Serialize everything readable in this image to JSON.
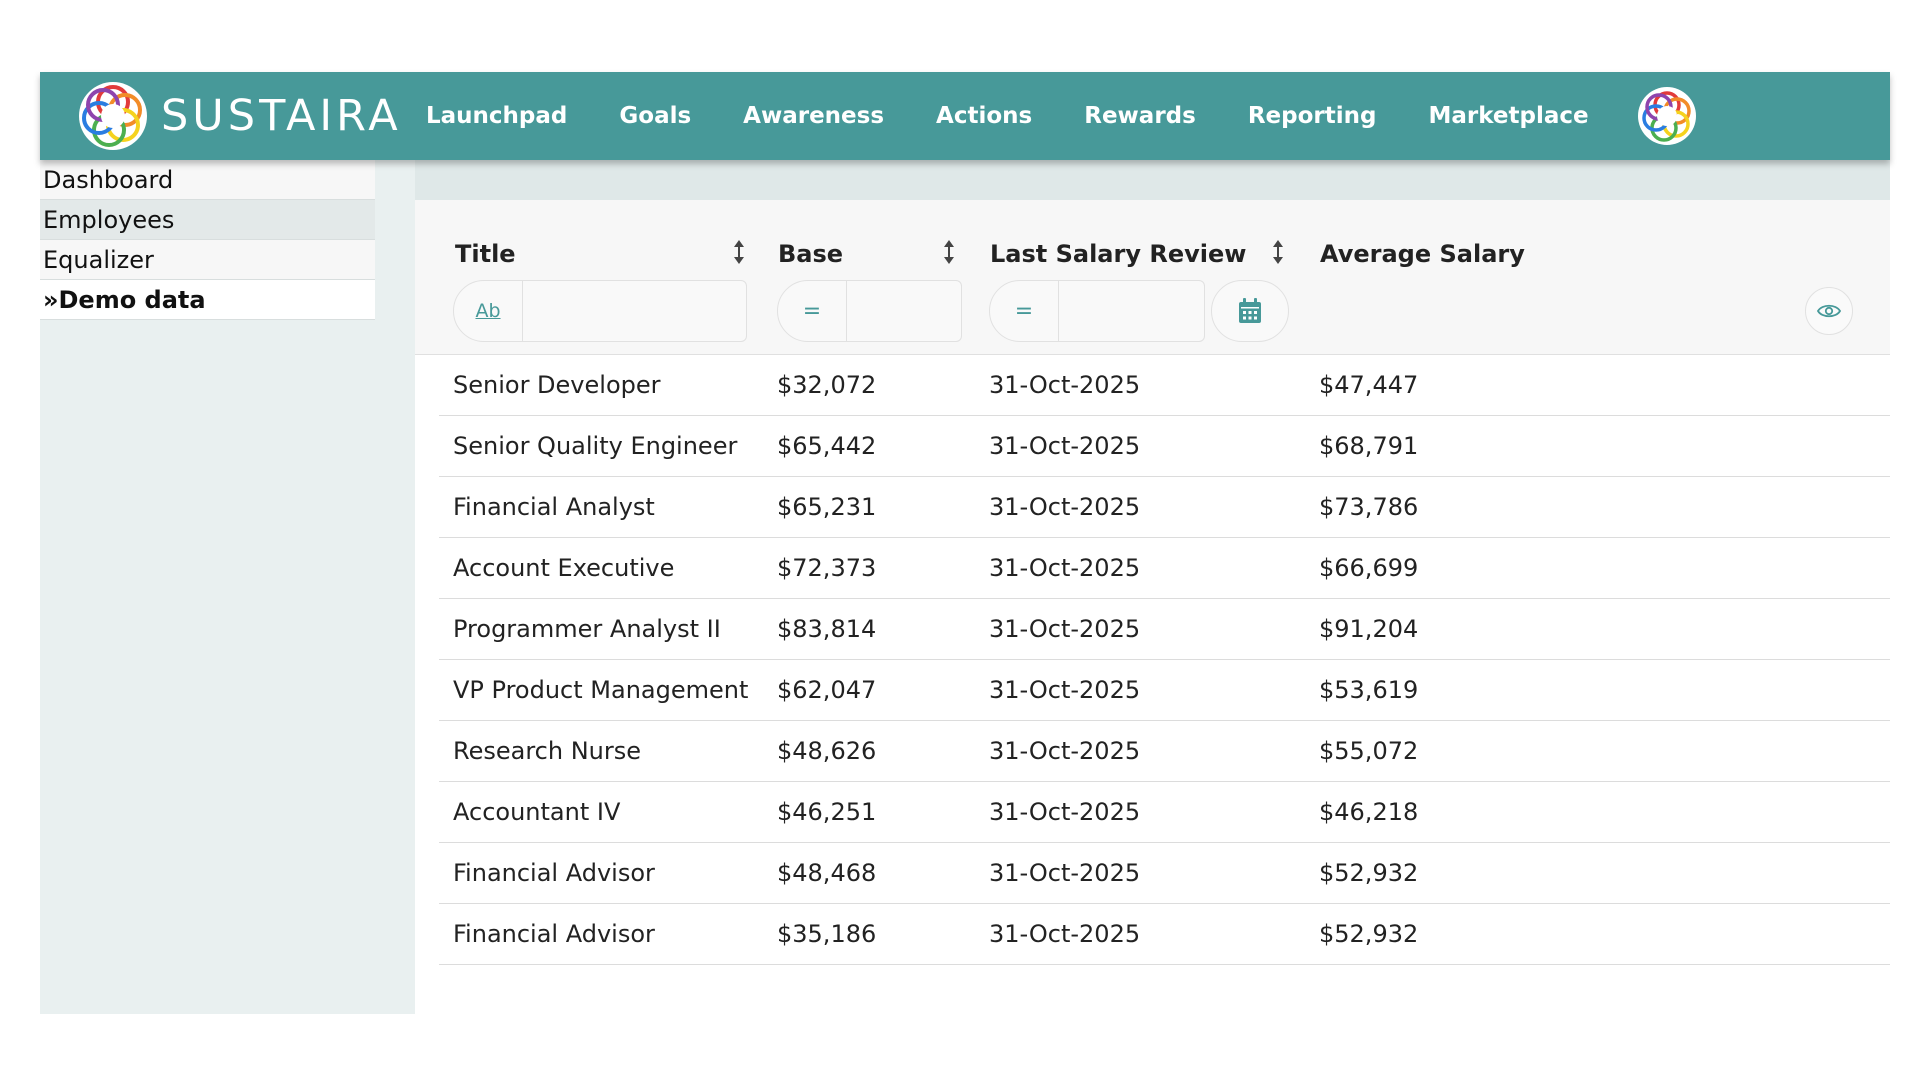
{
  "brand": {
    "name": "SUSTAIRA"
  },
  "nav": {
    "items": [
      "Launchpad",
      "Goals",
      "Awareness",
      "Actions",
      "Rewards",
      "Reporting",
      "Marketplace"
    ]
  },
  "sidebar": {
    "items": [
      "Dashboard",
      "Employees",
      "Equalizer",
      "»Demo data"
    ]
  },
  "table": {
    "columns": {
      "title": "Title",
      "base": "Base",
      "last_review": "Last Salary Review",
      "average": "Average Salary"
    },
    "filters": {
      "text_op": "Ab",
      "eq_op": "="
    },
    "rows": [
      [
        "Senior Developer",
        "$32,072",
        "31-Oct-2025",
        "$47,447"
      ],
      [
        "Senior Quality Engineer",
        "$65,442",
        "31-Oct-2025",
        "$68,791"
      ],
      [
        "Financial Analyst",
        "$65,231",
        "31-Oct-2025",
        "$73,786"
      ],
      [
        "Account Executive",
        "$72,373",
        "31-Oct-2025",
        "$66,699"
      ],
      [
        "Programmer Analyst II",
        "$83,814",
        "31-Oct-2025",
        "$91,204"
      ],
      [
        "VP Product Management",
        "$62,047",
        "31-Oct-2025",
        "$53,619"
      ],
      [
        "Research Nurse",
        "$48,626",
        "31-Oct-2025",
        "$55,072"
      ],
      [
        "Accountant IV",
        "$46,251",
        "31-Oct-2025",
        "$46,218"
      ],
      [
        "Financial Advisor",
        "$48,468",
        "31-Oct-2025",
        "$52,932"
      ],
      [
        "Financial Advisor",
        "$35,186",
        "31-Oct-2025",
        "$52,932"
      ]
    ]
  },
  "icons": {
    "logo": "sustaira-logo-icon",
    "avatar": "user-avatar-icon",
    "sort": "sort-arrows-icon",
    "calendar": "calendar-icon",
    "eye": "eye-icon"
  },
  "colors": {
    "brand": "#479999",
    "sidebar_bg": "#e9f0f0"
  }
}
